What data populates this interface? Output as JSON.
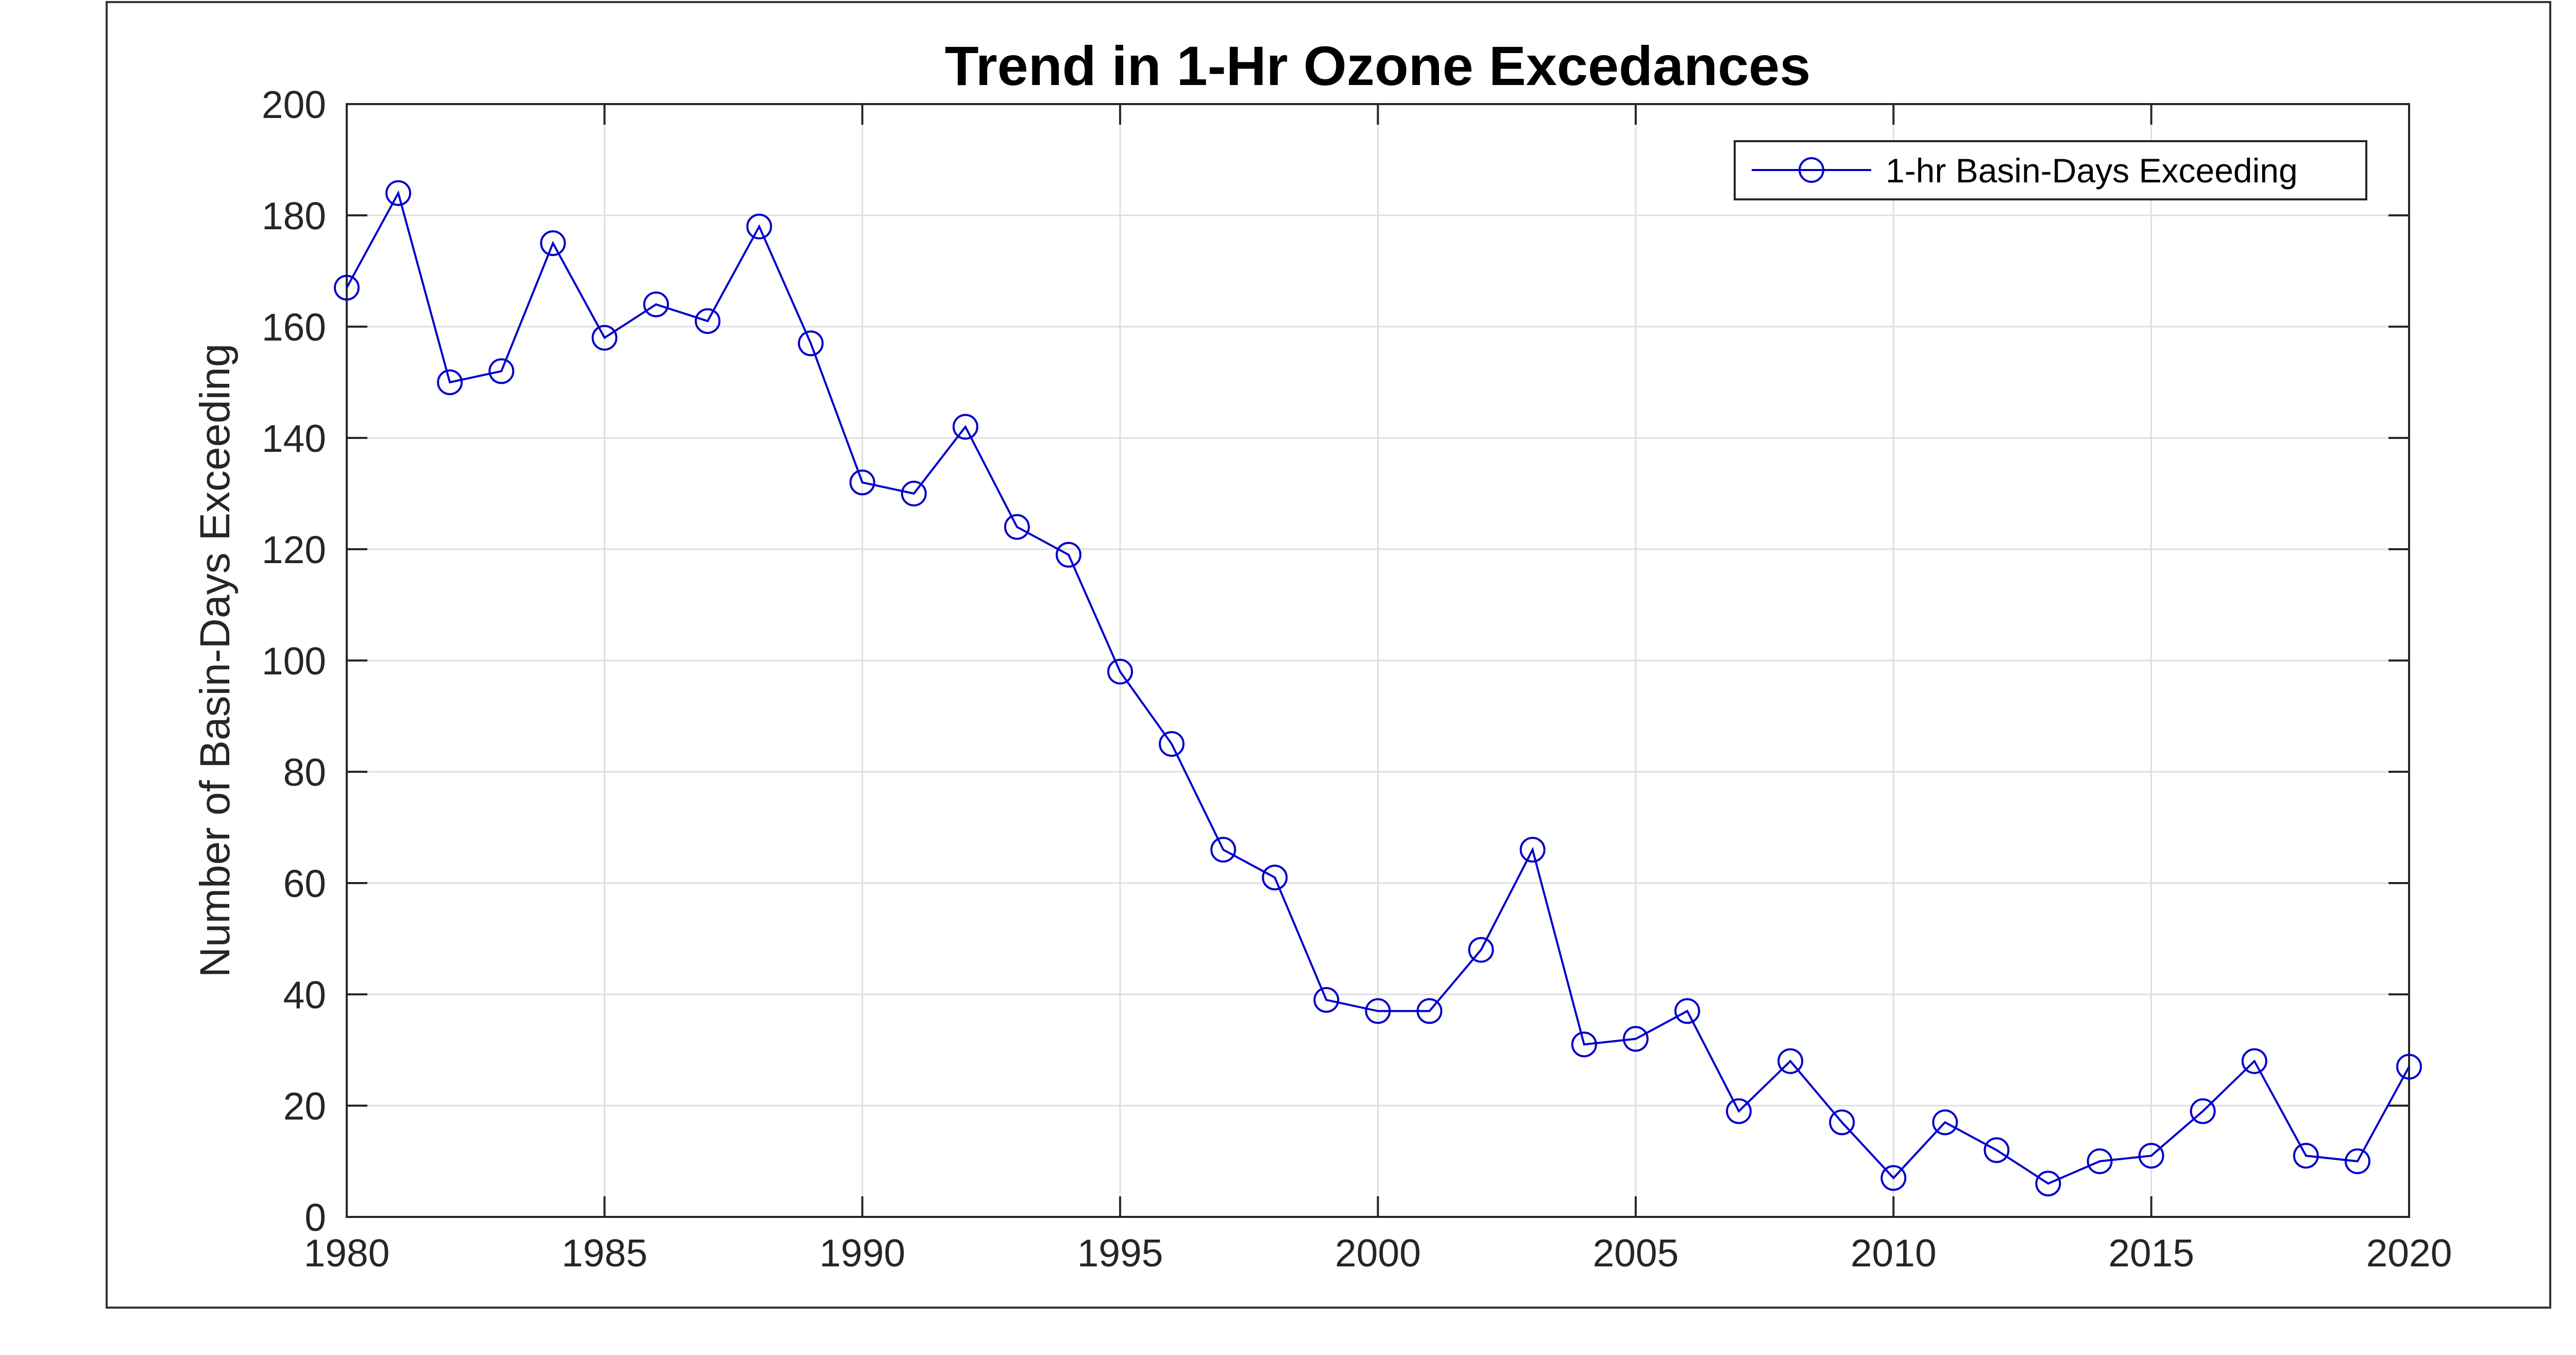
{
  "chart_data": {
    "type": "line",
    "title": "Trend in 1-Hr Ozone Excedances",
    "xlabel": "",
    "ylabel": "Number of Basin-Days Exceeding",
    "xlim": [
      1980,
      2020
    ],
    "ylim": [
      0,
      200
    ],
    "x_ticks": [
      1980,
      1985,
      1990,
      1995,
      2000,
      2005,
      2010,
      2015,
      2020
    ],
    "y_ticks": [
      0,
      20,
      40,
      60,
      80,
      100,
      120,
      140,
      160,
      180,
      200
    ],
    "grid": true,
    "legend_position": "top-right",
    "series": [
      {
        "name": "1-hr Basin-Days Exceeding",
        "color": "#0000cc",
        "marker": "circle",
        "x": [
          1980,
          1981,
          1982,
          1983,
          1984,
          1985,
          1986,
          1987,
          1988,
          1989,
          1990,
          1991,
          1992,
          1993,
          1994,
          1995,
          1996,
          1997,
          1998,
          1999,
          2000,
          2001,
          2002,
          2003,
          2004,
          2005,
          2006,
          2007,
          2008,
          2009,
          2010,
          2011,
          2012,
          2013,
          2014,
          2015,
          2016,
          2017,
          2018,
          2019,
          2020
        ],
        "y": [
          167,
          184,
          150,
          152,
          175,
          158,
          164,
          161,
          178,
          157,
          132,
          130,
          142,
          124,
          119,
          98,
          85,
          66,
          61,
          39,
          37,
          37,
          48,
          66,
          31,
          32,
          37,
          19,
          28,
          17,
          7,
          17,
          12,
          6,
          10,
          11,
          19,
          28,
          11,
          10,
          27
        ]
      }
    ]
  }
}
